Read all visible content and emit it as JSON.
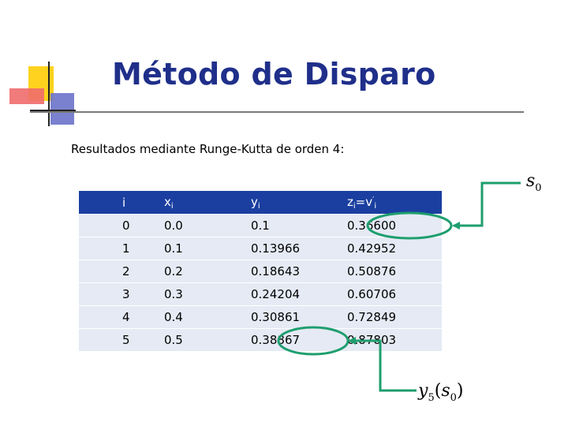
{
  "slide": {
    "title": "Método de Disparo",
    "subtitle": "Resultados mediante Runge-Kutta de orden 4:"
  },
  "table": {
    "headers": {
      "i": "i",
      "x_base": "x",
      "x_sub": "i",
      "y_base": "y",
      "y_sub": "i",
      "z_base": "z",
      "z_sub": "i",
      "z_eq": "=v",
      "z_sup": "′",
      "z_sub2": "i"
    },
    "rows": [
      [
        "0",
        "0.0",
        "0.1",
        "0.36600"
      ],
      [
        "1",
        "0.1",
        "0.13966",
        "0.42952"
      ],
      [
        "2",
        "0.2",
        "0.18643",
        "0.50876"
      ],
      [
        "3",
        "0.3",
        "0.24204",
        "0.60706"
      ],
      [
        "4",
        "0.4",
        "0.30861",
        "0.72849"
      ],
      [
        "5",
        "0.5",
        "0.38867",
        "0.87803"
      ]
    ]
  },
  "annotations": {
    "s0": {
      "base": "s",
      "sub": "0"
    },
    "y5": {
      "base": "y",
      "sub": "5",
      "open": "(",
      "arg": "s",
      "arg_sub": "0",
      "close": ")"
    },
    "highlight_color": "#1e9e6e"
  },
  "colors": {
    "title": "#1f2f8a",
    "header_bg": "#1b3fa0",
    "row_bg": "#e5eaf4"
  }
}
